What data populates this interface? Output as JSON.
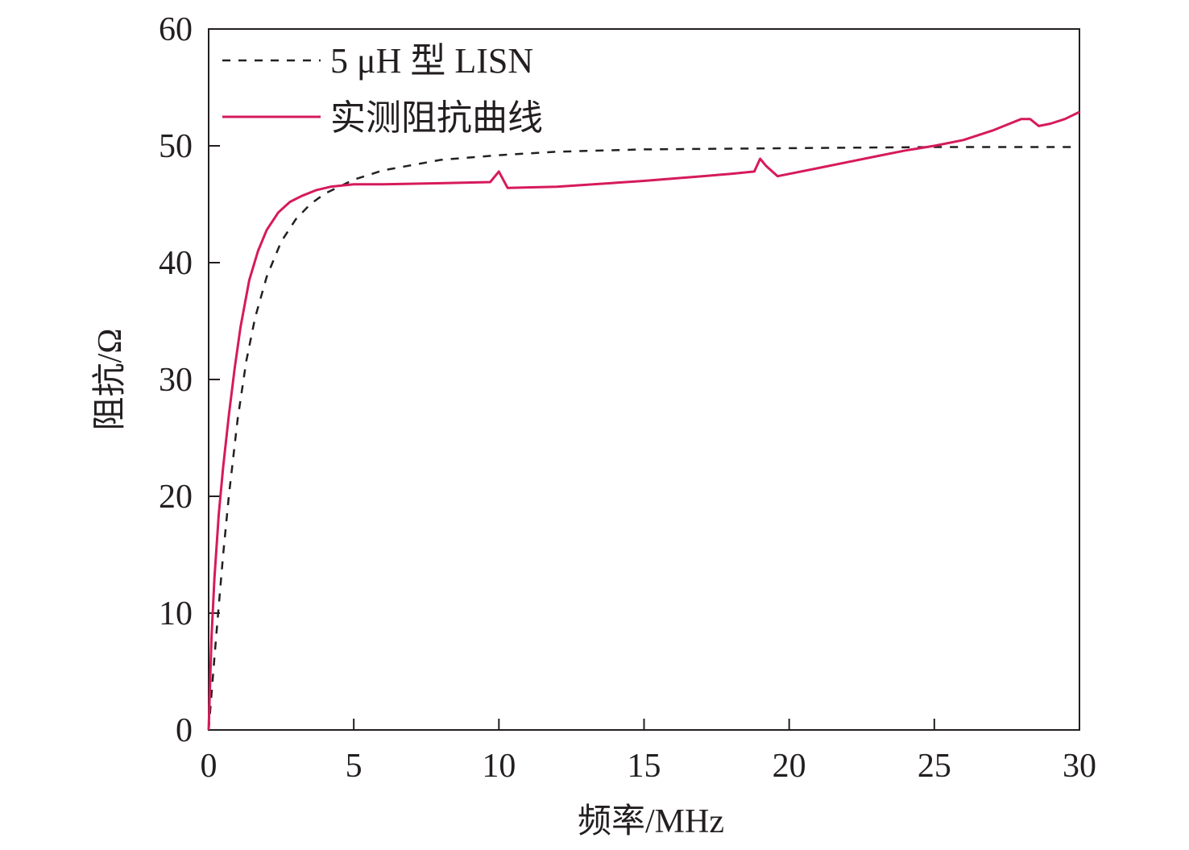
{
  "chart_data": {
    "type": "line",
    "xlabel": "频率/MHz",
    "ylabel": "阻抗/Ω",
    "xlim": [
      0,
      30
    ],
    "ylim": [
      0,
      60
    ],
    "xticks": [
      "0",
      "5",
      "10",
      "15",
      "20",
      "25",
      "30"
    ],
    "yticks": [
      "0",
      "10",
      "20",
      "30",
      "40",
      "50",
      "60"
    ],
    "grid": false,
    "legend_position": "top-left",
    "series": [
      {
        "name": "5 μH 型 LISN",
        "style": "dashed",
        "color": "#231f20",
        "x": [
          0,
          0.1,
          0.2,
          0.3,
          0.5,
          0.7,
          1.0,
          1.3,
          1.6,
          2.0,
          2.5,
          3.0,
          3.5,
          4.0,
          5.0,
          6.0,
          8.0,
          10.0,
          12.0,
          15.0,
          20.0,
          25.0,
          30.0
        ],
        "y": [
          0,
          3.1,
          6.2,
          9.2,
          15.0,
          20.1,
          26.6,
          31.6,
          35.3,
          38.8,
          41.8,
          43.7,
          45.0,
          45.9,
          47.1,
          47.9,
          48.8,
          49.2,
          49.5,
          49.7,
          49.8,
          49.9,
          49.9
        ]
      },
      {
        "name": "实测阻抗曲线",
        "style": "solid",
        "color": "#d61a5c",
        "x": [
          0,
          0.1,
          0.2,
          0.35,
          0.5,
          0.7,
          0.9,
          1.1,
          1.4,
          1.7,
          2.0,
          2.4,
          2.8,
          3.2,
          3.7,
          4.2,
          5.0,
          6.0,
          8.0,
          9.7,
          10.0,
          10.3,
          12.0,
          15.0,
          16.0,
          17.0,
          18.0,
          18.8,
          19.0,
          19.2,
          19.6,
          20.0,
          21.0,
          22.0,
          23.0,
          24.0,
          25.0,
          26.0,
          27.0,
          27.5,
          28.0,
          28.3,
          28.6,
          29.0,
          29.5,
          30.0
        ],
        "y": [
          0,
          8.0,
          13.0,
          18.5,
          22.5,
          27.0,
          31.0,
          34.5,
          38.5,
          41.0,
          42.8,
          44.3,
          45.2,
          45.7,
          46.2,
          46.5,
          46.7,
          46.7,
          46.8,
          46.9,
          47.8,
          46.4,
          46.5,
          47.0,
          47.2,
          47.4,
          47.6,
          47.8,
          48.9,
          48.3,
          47.4,
          47.6,
          48.1,
          48.6,
          49.1,
          49.6,
          50.0,
          50.5,
          51.3,
          51.8,
          52.3,
          52.3,
          51.7,
          51.9,
          52.3,
          52.9
        ]
      }
    ]
  }
}
